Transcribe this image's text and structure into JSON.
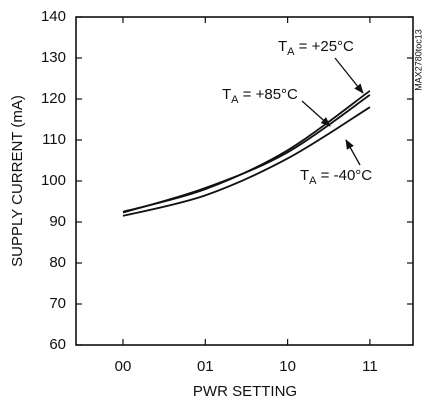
{
  "chart_data": {
    "type": "line",
    "y_label": "SUPPLY CURRENT (mA)",
    "x_label": "PWR SETTING",
    "watermark": "MAX2780toc13",
    "categories": [
      "00",
      "01",
      "10",
      "11"
    ],
    "series": [
      {
        "name": "TA = +25°C",
        "color": "#111111",
        "values": [
          92.5,
          98,
          107.5,
          122
        ]
      },
      {
        "name": "TA = +85°C",
        "color": "#111111",
        "values": [
          92.3,
          98.3,
          107,
          121
        ]
      },
      {
        "name": "TA = -40°C",
        "color": "#111111",
        "values": [
          91.5,
          96.5,
          105.5,
          118
        ]
      }
    ],
    "ylim": [
      60,
      140
    ],
    "yticks": [
      60,
      70,
      80,
      90,
      100,
      110,
      120,
      130,
      140
    ],
    "grid": false
  }
}
